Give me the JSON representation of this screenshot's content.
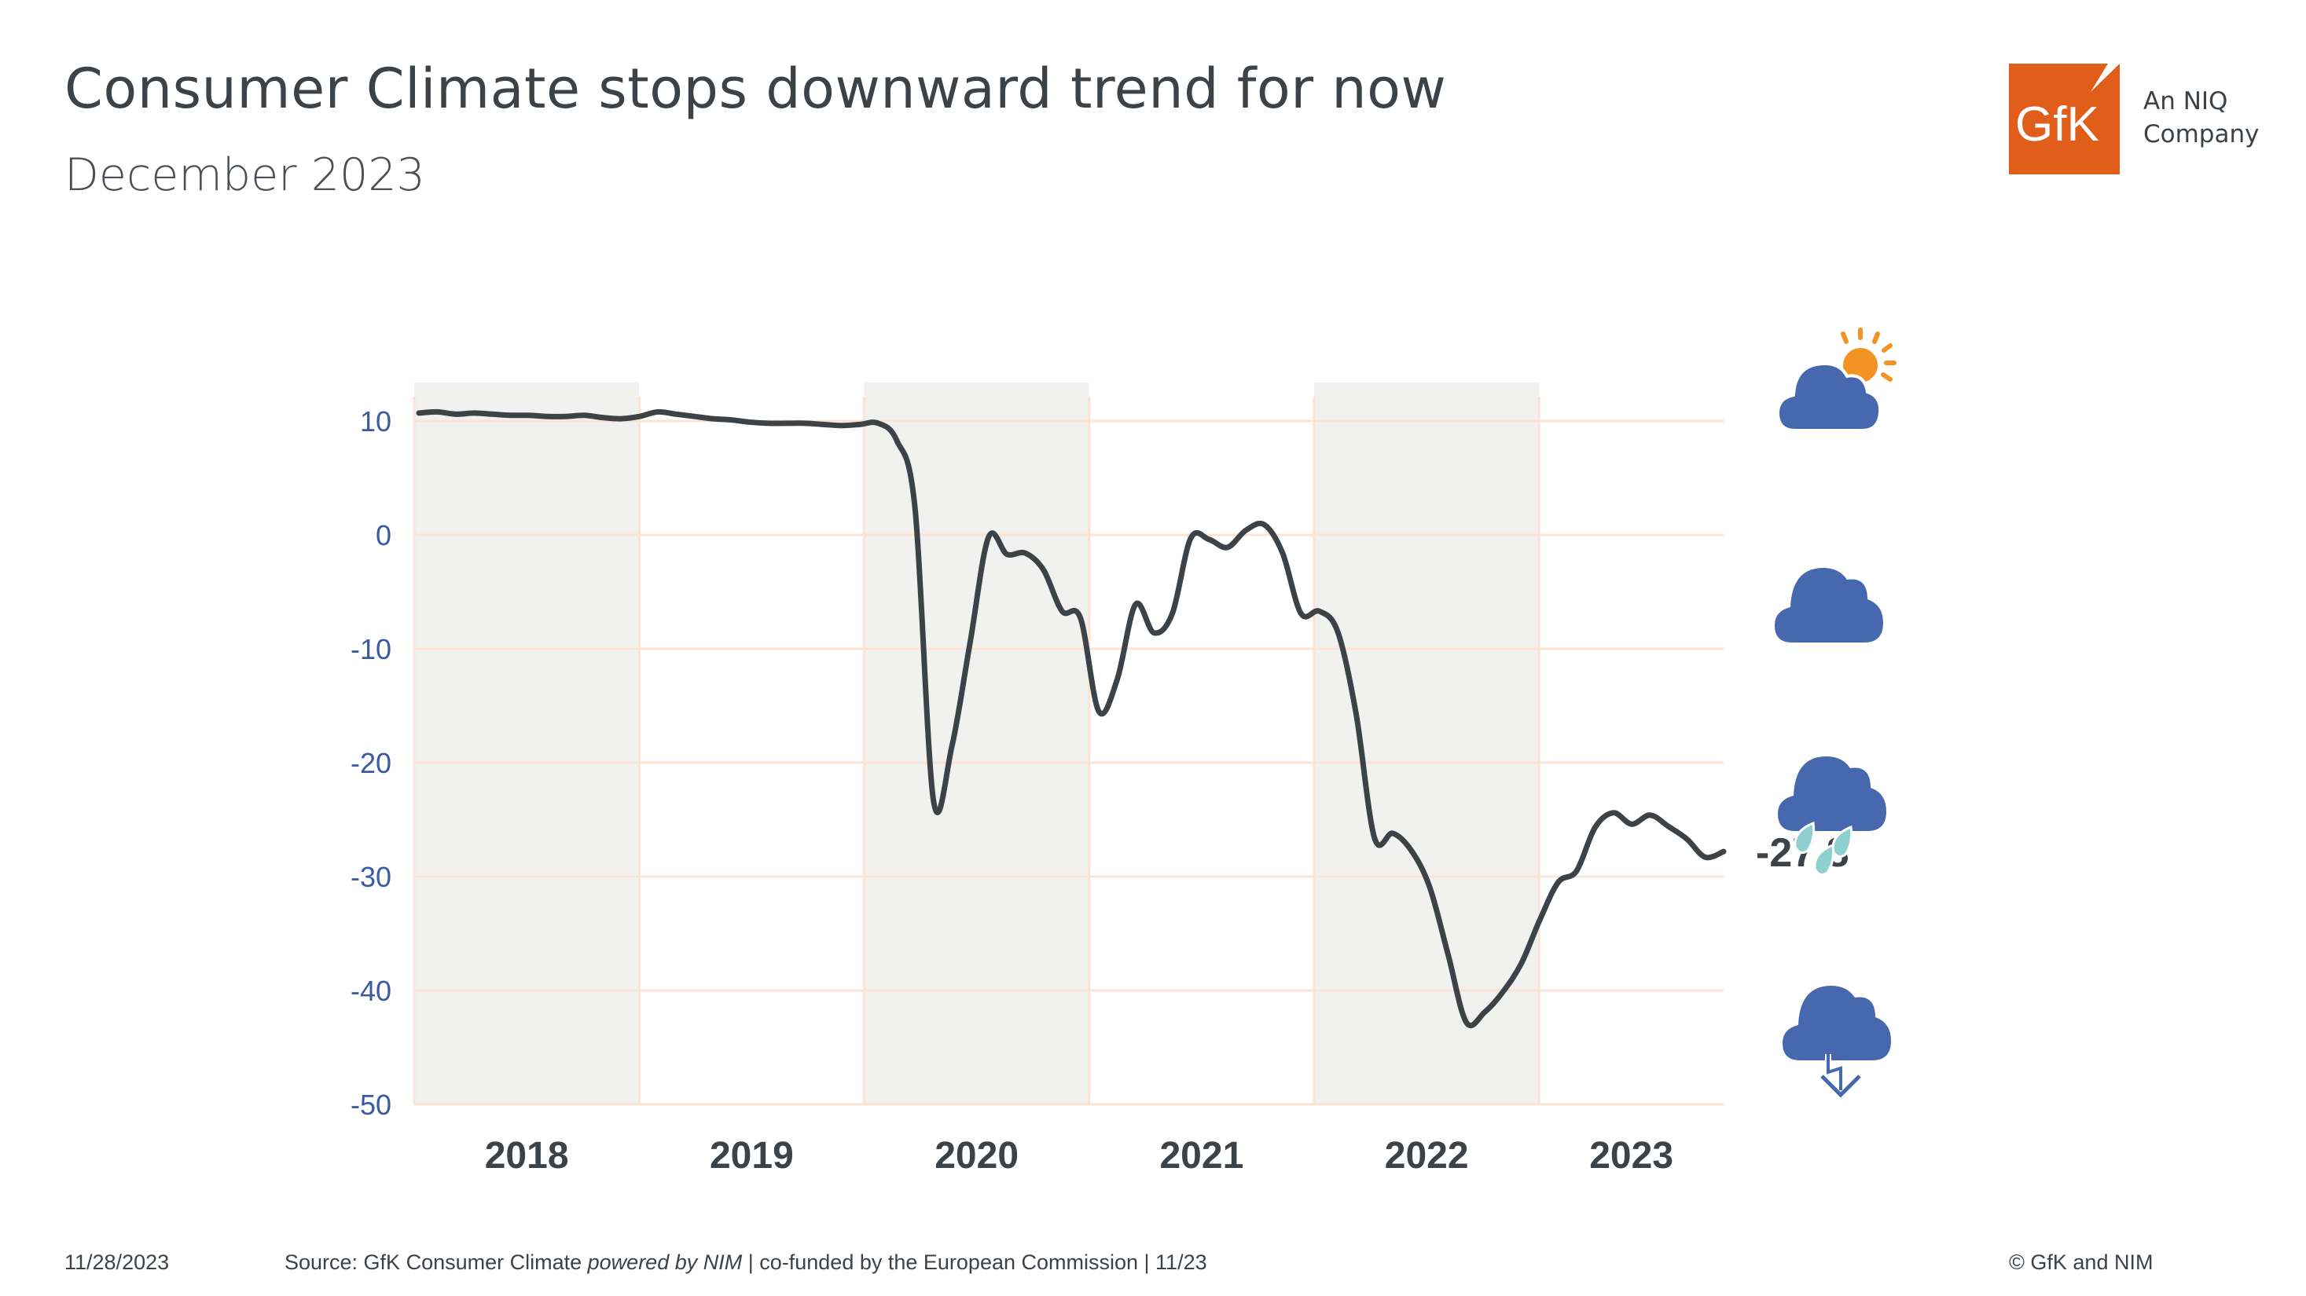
{
  "header": {
    "title": "Consumer Climate stops downward trend for now",
    "subtitle": "December 2023"
  },
  "logo": {
    "brand": "GfK",
    "tagline_line1": "An NIQ",
    "tagline_line2": "Company",
    "color": "#e05d1a"
  },
  "chart_data": {
    "type": "line",
    "title": "",
    "xlabel": "",
    "ylabel": "",
    "ylim": [
      -50,
      10
    ],
    "yticks": [
      10,
      0,
      -10,
      -20,
      -30,
      -40,
      -50
    ],
    "xtick_labels": [
      "2018",
      "2019",
      "2020",
      "2021",
      "2022",
      "2023"
    ],
    "shaded_years": [
      "2018",
      "2020",
      "2022"
    ],
    "grid": true,
    "line_color": "#3d4247",
    "tick_color": "#3a5ba0",
    "x": [
      "2018-01",
      "2018-02",
      "2018-03",
      "2018-04",
      "2018-05",
      "2018-06",
      "2018-07",
      "2018-08",
      "2018-09",
      "2018-10",
      "2018-11",
      "2018-12",
      "2019-01",
      "2019-02",
      "2019-03",
      "2019-04",
      "2019-05",
      "2019-06",
      "2019-07",
      "2019-08",
      "2019-09",
      "2019-10",
      "2019-11",
      "2019-12",
      "2020-01",
      "2020-02",
      "2020-03",
      "2020-04",
      "2020-05",
      "2020-06",
      "2020-07",
      "2020-08",
      "2020-09",
      "2020-10",
      "2020-11",
      "2020-12",
      "2021-01",
      "2021-02",
      "2021-03",
      "2021-04",
      "2021-05",
      "2021-06",
      "2021-07",
      "2021-08",
      "2021-09",
      "2021-10",
      "2021-11",
      "2021-12",
      "2022-01",
      "2022-02",
      "2022-03",
      "2022-04",
      "2022-05",
      "2022-06",
      "2022-07",
      "2022-08",
      "2022-09",
      "2022-10",
      "2022-11",
      "2022-12",
      "2023-01",
      "2023-02",
      "2023-03",
      "2023-04",
      "2023-05",
      "2023-06",
      "2023-07",
      "2023-08",
      "2023-09",
      "2023-10",
      "2023-11",
      "2023-12"
    ],
    "values": [
      10.7,
      10.8,
      10.6,
      10.7,
      10.6,
      10.5,
      10.5,
      10.4,
      10.4,
      10.5,
      10.3,
      10.2,
      10.4,
      10.8,
      10.6,
      10.4,
      10.2,
      10.1,
      9.9,
      9.8,
      9.8,
      9.8,
      9.7,
      9.6,
      9.7,
      9.8,
      8.3,
      2.3,
      -23.3,
      -18.6,
      -9.4,
      -0.2,
      -1.7,
      -1.6,
      -3.1,
      -6.7,
      -7.3,
      -15.5,
      -12.7,
      -6.1,
      -8.6,
      -6.9,
      -0.3,
      -0.4,
      -1.1,
      0.4,
      0.9,
      -1.6,
      -6.9,
      -6.7,
      -8.5,
      -15.7,
      -26.6,
      -26.2,
      -27.7,
      -30.9,
      -36.8,
      -42.8,
      -41.9,
      -40.1,
      -37.6,
      -33.8,
      -30.5,
      -29.5,
      -25.7,
      -24.4,
      -25.4,
      -24.6,
      -25.6,
      -26.7,
      -28.3,
      -27.8
    ],
    "end_label": "-27.8",
    "scale_icons": [
      "sun-behind-cloud-icon",
      "cloud-icon",
      "rain-cloud-icon",
      "thunderstorm-cloud-icon"
    ],
    "icon_colors": {
      "cloud": "#4767ae",
      "sun": "#f39324",
      "rain": "#8ecfcf"
    }
  },
  "footer": {
    "date": "11/28/2023",
    "source_prefix": "Source: GfK Consumer Climate ",
    "source_italic": "powered by NIM",
    "source_suffix": " | co-funded by the European Commission | 11/23",
    "copyright": "© GfK and NIM"
  }
}
